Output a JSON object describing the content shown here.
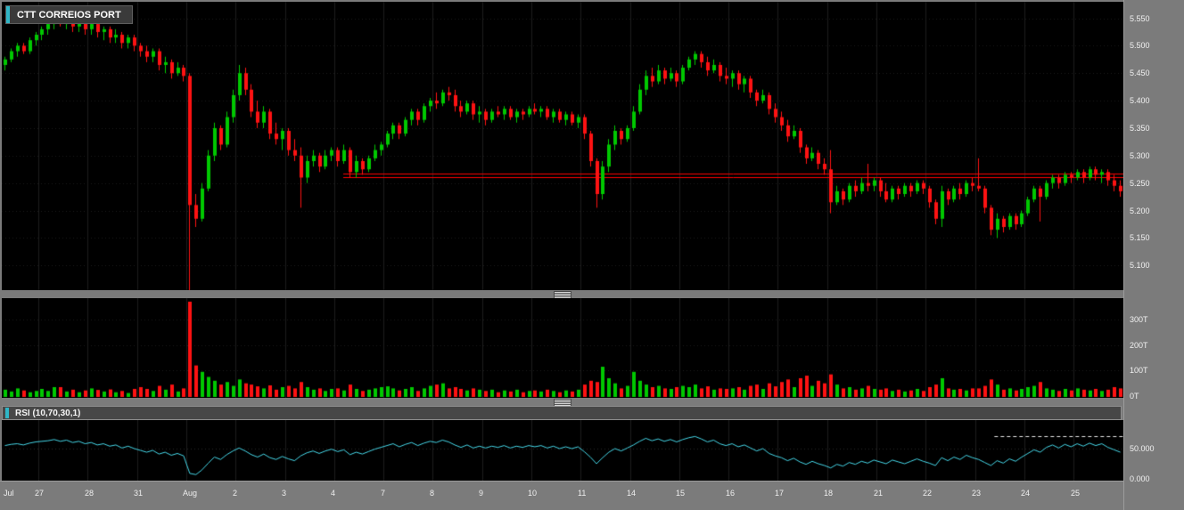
{
  "symbol_badge": {
    "label": "CTT CORREIOS PORT"
  },
  "rsi_header": {
    "label": "RSI (10,70,30,1)"
  },
  "colors": {
    "up": "#00c800",
    "down": "#ff1212",
    "rsi_line": "#45d7e8",
    "accent": "#2fb6c6",
    "price_line": "#ff0000",
    "grid": "#1d1d1d",
    "grid_dotted": "#1c1c1c",
    "frame": "#7b7b7b",
    "panel_bg": "#000000",
    "axis_text": "#f1f1f1",
    "rsi_dashed": "#e8e8e8"
  },
  "price_axis": {
    "labels": [
      "5.550",
      "5.500",
      "5.450",
      "5.400",
      "5.350",
      "5.300",
      "5.250",
      "5.200",
      "5.150",
      "5.100"
    ]
  },
  "volume_axis": {
    "labels": [
      "300T",
      "200T",
      "100T",
      "0T"
    ]
  },
  "rsi_axis": {
    "labels": [
      "50.000",
      "0.000"
    ]
  },
  "date_axis": {
    "labels": [
      "Jul",
      "27",
      "28",
      "31",
      "Aug",
      "2",
      "3",
      "4",
      "7",
      "8",
      "9",
      "10",
      "11",
      "14",
      "15",
      "16",
      "17",
      "18",
      "21",
      "22",
      "23",
      "24",
      "25"
    ]
  },
  "chart_data": {
    "type": "candlestick",
    "title": "CTT CORREIOS PORT",
    "panels": [
      "price",
      "volume",
      "rsi"
    ],
    "x_axis": {
      "labels": [
        "Jul",
        "27",
        "28",
        "31",
        "Aug",
        "2",
        "3",
        "4",
        "7",
        "8",
        "9",
        "10",
        "11",
        "14",
        "15",
        "16",
        "17",
        "18",
        "21",
        "22",
        "23",
        "24",
        "25"
      ],
      "first_day_candles": 6,
      "candles_per_day": 8
    },
    "price_panel": {
      "ylim": [
        5.055,
        5.58
      ],
      "ticks": [
        5.55,
        5.5,
        5.45,
        5.4,
        5.35,
        5.3,
        5.25,
        5.2,
        5.15,
        5.1
      ],
      "horizontal_lines": [
        5.268,
        5.26
      ],
      "horizontal_lines_start_index": 55
    },
    "volume_panel": {
      "unit": "T",
      "ticks": [
        300,
        200,
        100,
        0
      ],
      "ymax": 380
    },
    "rsi_panel": {
      "label": "RSI (10,70,30,1)",
      "params": [
        10,
        70,
        30,
        1
      ],
      "ticks": [
        50,
        0
      ],
      "overbought_dashed_level": 70,
      "dashed_from_frac": 0.885,
      "ylim": [
        0,
        100
      ]
    },
    "candles": [
      [
        5.465,
        5.48,
        5.455,
        5.475
      ],
      [
        5.475,
        5.495,
        5.47,
        5.49
      ],
      [
        5.49,
        5.505,
        5.48,
        5.5
      ],
      [
        5.5,
        5.505,
        5.485,
        5.49
      ],
      [
        5.49,
        5.515,
        5.485,
        5.51
      ],
      [
        5.51,
        5.525,
        5.5,
        5.52
      ],
      [
        5.52,
        5.535,
        5.51,
        5.53
      ],
      [
        5.53,
        5.545,
        5.52,
        5.54
      ],
      [
        5.54,
        5.555,
        5.53,
        5.55
      ],
      [
        5.55,
        5.555,
        5.535,
        5.54
      ],
      [
        5.54,
        5.555,
        5.53,
        5.55
      ],
      [
        5.55,
        5.555,
        5.525,
        5.535
      ],
      [
        5.535,
        5.55,
        5.525,
        5.545
      ],
      [
        5.545,
        5.55,
        5.52,
        5.53
      ],
      [
        5.53,
        5.545,
        5.52,
        5.54
      ],
      [
        5.54,
        5.545,
        5.515,
        5.525
      ],
      [
        5.525,
        5.535,
        5.51,
        5.53
      ],
      [
        5.53,
        5.535,
        5.505,
        5.515
      ],
      [
        5.515,
        5.53,
        5.505,
        5.52
      ],
      [
        5.52,
        5.525,
        5.495,
        5.505
      ],
      [
        5.505,
        5.52,
        5.495,
        5.515
      ],
      [
        5.515,
        5.52,
        5.49,
        5.5
      ],
      [
        5.5,
        5.505,
        5.48,
        5.49
      ],
      [
        5.49,
        5.5,
        5.47,
        5.48
      ],
      [
        5.48,
        5.495,
        5.47,
        5.49
      ],
      [
        5.49,
        5.495,
        5.455,
        5.465
      ],
      [
        5.465,
        5.48,
        5.45,
        5.47
      ],
      [
        5.47,
        5.475,
        5.44,
        5.45
      ],
      [
        5.45,
        5.47,
        5.445,
        5.46
      ],
      [
        5.46,
        5.465,
        5.435,
        5.445
      ],
      [
        5.445,
        5.45,
        5.05,
        5.21
      ],
      [
        5.21,
        5.23,
        5.17,
        5.185
      ],
      [
        5.185,
        5.25,
        5.18,
        5.24
      ],
      [
        5.24,
        5.31,
        5.235,
        5.3
      ],
      [
        5.3,
        5.36,
        5.29,
        5.35
      ],
      [
        5.35,
        5.355,
        5.31,
        5.32
      ],
      [
        5.32,
        5.38,
        5.315,
        5.37
      ],
      [
        5.37,
        5.42,
        5.36,
        5.41
      ],
      [
        5.41,
        5.465,
        5.4,
        5.45
      ],
      [
        5.45,
        5.46,
        5.41,
        5.42
      ],
      [
        5.42,
        5.43,
        5.37,
        5.38
      ],
      [
        5.38,
        5.4,
        5.35,
        5.36
      ],
      [
        5.36,
        5.39,
        5.35,
        5.38
      ],
      [
        5.38,
        5.385,
        5.33,
        5.34
      ],
      [
        5.34,
        5.36,
        5.32,
        5.33
      ],
      [
        5.33,
        5.35,
        5.31,
        5.345
      ],
      [
        5.345,
        5.35,
        5.3,
        5.31
      ],
      [
        5.31,
        5.33,
        5.29,
        5.3
      ],
      [
        5.3,
        5.315,
        5.205,
        5.26
      ],
      [
        5.26,
        5.3,
        5.25,
        5.29
      ],
      [
        5.29,
        5.31,
        5.28,
        5.3
      ],
      [
        5.3,
        5.305,
        5.27,
        5.28
      ],
      [
        5.28,
        5.31,
        5.275,
        5.3
      ],
      [
        5.3,
        5.315,
        5.29,
        5.31
      ],
      [
        5.31,
        5.315,
        5.28,
        5.29
      ],
      [
        5.29,
        5.32,
        5.285,
        5.31
      ],
      [
        5.31,
        5.315,
        5.26,
        5.27
      ],
      [
        5.27,
        5.3,
        5.26,
        5.29
      ],
      [
        5.29,
        5.295,
        5.265,
        5.275
      ],
      [
        5.275,
        5.3,
        5.27,
        5.295
      ],
      [
        5.295,
        5.32,
        5.29,
        5.31
      ],
      [
        5.31,
        5.325,
        5.3,
        5.32
      ],
      [
        5.32,
        5.345,
        5.315,
        5.34
      ],
      [
        5.34,
        5.36,
        5.33,
        5.355
      ],
      [
        5.355,
        5.36,
        5.33,
        5.34
      ],
      [
        5.34,
        5.37,
        5.335,
        5.365
      ],
      [
        5.365,
        5.385,
        5.355,
        5.38
      ],
      [
        5.38,
        5.385,
        5.355,
        5.365
      ],
      [
        5.365,
        5.395,
        5.36,
        5.39
      ],
      [
        5.39,
        5.405,
        5.38,
        5.4
      ],
      [
        5.4,
        5.415,
        5.385,
        5.395
      ],
      [
        5.395,
        5.42,
        5.39,
        5.415
      ],
      [
        5.415,
        5.425,
        5.4,
        5.41
      ],
      [
        5.41,
        5.42,
        5.38,
        5.39
      ],
      [
        5.39,
        5.4,
        5.37,
        5.38
      ],
      [
        5.38,
        5.4,
        5.375,
        5.395
      ],
      [
        5.395,
        5.4,
        5.365,
        5.375
      ],
      [
        5.375,
        5.39,
        5.36,
        5.38
      ],
      [
        5.38,
        5.385,
        5.355,
        5.365
      ],
      [
        5.365,
        5.385,
        5.36,
        5.38
      ],
      [
        5.38,
        5.39,
        5.37,
        5.375
      ],
      [
        5.375,
        5.39,
        5.365,
        5.385
      ],
      [
        5.385,
        5.39,
        5.365,
        5.37
      ],
      [
        5.37,
        5.385,
        5.36,
        5.38
      ],
      [
        5.38,
        5.385,
        5.365,
        5.375
      ],
      [
        5.375,
        5.39,
        5.37,
        5.385
      ],
      [
        5.385,
        5.395,
        5.375,
        5.38
      ],
      [
        5.38,
        5.39,
        5.37,
        5.385
      ],
      [
        5.385,
        5.39,
        5.365,
        5.37
      ],
      [
        5.37,
        5.385,
        5.36,
        5.38
      ],
      [
        5.38,
        5.385,
        5.36,
        5.365
      ],
      [
        5.365,
        5.38,
        5.355,
        5.375
      ],
      [
        5.375,
        5.38,
        5.355,
        5.36
      ],
      [
        5.36,
        5.375,
        5.35,
        5.37
      ],
      [
        5.37,
        5.375,
        5.33,
        5.34
      ],
      [
        5.34,
        5.345,
        5.28,
        5.29
      ],
      [
        5.29,
        5.295,
        5.205,
        5.23
      ],
      [
        5.23,
        5.29,
        5.22,
        5.28
      ],
      [
        5.28,
        5.33,
        5.27,
        5.32
      ],
      [
        5.32,
        5.355,
        5.31,
        5.345
      ],
      [
        5.345,
        5.35,
        5.32,
        5.33
      ],
      [
        5.33,
        5.355,
        5.325,
        5.35
      ],
      [
        5.35,
        5.39,
        5.345,
        5.38
      ],
      [
        5.38,
        5.43,
        5.375,
        5.42
      ],
      [
        5.42,
        5.455,
        5.41,
        5.445
      ],
      [
        5.445,
        5.46,
        5.425,
        5.435
      ],
      [
        5.435,
        5.465,
        5.43,
        5.455
      ],
      [
        5.455,
        5.46,
        5.43,
        5.44
      ],
      [
        5.44,
        5.46,
        5.435,
        5.45
      ],
      [
        5.45,
        5.455,
        5.425,
        5.435
      ],
      [
        5.435,
        5.465,
        5.43,
        5.46
      ],
      [
        5.46,
        5.48,
        5.455,
        5.475
      ],
      [
        5.475,
        5.49,
        5.465,
        5.485
      ],
      [
        5.485,
        5.49,
        5.46,
        5.47
      ],
      [
        5.47,
        5.48,
        5.445,
        5.455
      ],
      [
        5.455,
        5.475,
        5.45,
        5.465
      ],
      [
        5.465,
        5.47,
        5.435,
        5.445
      ],
      [
        5.445,
        5.46,
        5.43,
        5.44
      ],
      [
        5.44,
        5.455,
        5.425,
        5.45
      ],
      [
        5.45,
        5.455,
        5.42,
        5.43
      ],
      [
        5.43,
        5.445,
        5.415,
        5.44
      ],
      [
        5.44,
        5.445,
        5.405,
        5.415
      ],
      [
        5.415,
        5.42,
        5.39,
        5.4
      ],
      [
        5.4,
        5.42,
        5.395,
        5.41
      ],
      [
        5.41,
        5.415,
        5.375,
        5.385
      ],
      [
        5.385,
        5.395,
        5.36,
        5.37
      ],
      [
        5.37,
        5.38,
        5.345,
        5.355
      ],
      [
        5.355,
        5.365,
        5.325,
        5.335
      ],
      [
        5.335,
        5.355,
        5.33,
        5.345
      ],
      [
        5.345,
        5.35,
        5.305,
        5.315
      ],
      [
        5.315,
        5.32,
        5.285,
        5.295
      ],
      [
        5.295,
        5.315,
        5.29,
        5.305
      ],
      [
        5.305,
        5.31,
        5.275,
        5.285
      ],
      [
        5.285,
        5.295,
        5.265,
        5.275
      ],
      [
        5.275,
        5.31,
        5.195,
        5.215
      ],
      [
        5.215,
        5.245,
        5.21,
        5.235
      ],
      [
        5.235,
        5.24,
        5.21,
        5.22
      ],
      [
        5.22,
        5.25,
        5.215,
        5.245
      ],
      [
        5.245,
        5.255,
        5.225,
        5.235
      ],
      [
        5.235,
        5.26,
        5.23,
        5.25
      ],
      [
        5.25,
        5.285,
        5.235,
        5.245
      ],
      [
        5.245,
        5.26,
        5.235,
        5.255
      ],
      [
        5.255,
        5.26,
        5.225,
        5.235
      ],
      [
        5.235,
        5.25,
        5.215,
        5.22
      ],
      [
        5.22,
        5.245,
        5.215,
        5.24
      ],
      [
        5.24,
        5.245,
        5.22,
        5.23
      ],
      [
        5.23,
        5.25,
        5.225,
        5.245
      ],
      [
        5.245,
        5.25,
        5.225,
        5.235
      ],
      [
        5.235,
        5.255,
        5.23,
        5.25
      ],
      [
        5.25,
        5.255,
        5.23,
        5.24
      ],
      [
        5.24,
        5.245,
        5.205,
        5.215
      ],
      [
        5.215,
        5.22,
        5.175,
        5.185
      ],
      [
        5.185,
        5.245,
        5.17,
        5.235
      ],
      [
        5.235,
        5.24,
        5.21,
        5.22
      ],
      [
        5.22,
        5.245,
        5.215,
        5.24
      ],
      [
        5.24,
        5.25,
        5.22,
        5.23
      ],
      [
        5.23,
        5.255,
        5.225,
        5.25
      ],
      [
        5.25,
        5.26,
        5.235,
        5.245
      ],
      [
        5.245,
        5.295,
        5.235,
        5.24
      ],
      [
        5.24,
        5.245,
        5.195,
        5.205
      ],
      [
        5.205,
        5.21,
        5.155,
        5.165
      ],
      [
        5.165,
        5.195,
        5.15,
        5.185
      ],
      [
        5.185,
        5.19,
        5.16,
        5.17
      ],
      [
        5.17,
        5.195,
        5.165,
        5.19
      ],
      [
        5.19,
        5.195,
        5.165,
        5.175
      ],
      [
        5.175,
        5.2,
        5.17,
        5.195
      ],
      [
        5.195,
        5.225,
        5.19,
        5.22
      ],
      [
        5.22,
        5.245,
        5.215,
        5.24
      ],
      [
        5.24,
        5.245,
        5.18,
        5.225
      ],
      [
        5.225,
        5.255,
        5.22,
        5.25
      ],
      [
        5.25,
        5.265,
        5.24,
        5.26
      ],
      [
        5.26,
        5.265,
        5.24,
        5.25
      ],
      [
        5.25,
        5.27,
        5.245,
        5.265
      ],
      [
        5.265,
        5.27,
        5.25,
        5.26
      ],
      [
        5.26,
        5.275,
        5.255,
        5.27
      ],
      [
        5.27,
        5.275,
        5.25,
        5.26
      ],
      [
        5.26,
        5.28,
        5.255,
        5.275
      ],
      [
        5.275,
        5.28,
        5.255,
        5.265
      ],
      [
        5.265,
        5.275,
        5.25,
        5.27
      ],
      [
        5.27,
        5.275,
        5.245,
        5.255
      ],
      [
        5.255,
        5.265,
        5.235,
        5.245
      ],
      [
        5.245,
        5.255,
        5.225,
        5.235
      ]
    ],
    "volumes": [
      25,
      18,
      30,
      22,
      15,
      20,
      28,
      20,
      35,
      35,
      18,
      25,
      15,
      22,
      30,
      24,
      18,
      26,
      15,
      20,
      12,
      28,
      35,
      28,
      20,
      40,
      25,
      45,
      18,
      30,
      370,
      120,
      95,
      75,
      60,
      45,
      55,
      40,
      65,
      50,
      45,
      38,
      30,
      42,
      25,
      35,
      40,
      30,
      55,
      35,
      25,
      30,
      20,
      28,
      30,
      22,
      45,
      28,
      20,
      25,
      30,
      35,
      38,
      30,
      22,
      28,
      35,
      20,
      30,
      40,
      45,
      50,
      30,
      35,
      28,
      22,
      30,
      25,
      20,
      25,
      15,
      22,
      18,
      25,
      15,
      20,
      22,
      18,
      25,
      20,
      15,
      22,
      18,
      25,
      45,
      60,
      55,
      115,
      70,
      50,
      30,
      40,
      95,
      60,
      45,
      35,
      40,
      30,
      28,
      35,
      40,
      35,
      45,
      30,
      38,
      25,
      30,
      28,
      30,
      35,
      25,
      40,
      45,
      28,
      50,
      38,
      55,
      65,
      35,
      70,
      80,
      40,
      60,
      50,
      85,
      45,
      30,
      35,
      25,
      30,
      40,
      28,
      25,
      30,
      20,
      25,
      18,
      22,
      28,
      20,
      35,
      45,
      70,
      30,
      25,
      28,
      22,
      30,
      30,
      40,
      65,
      45,
      25,
      30,
      22,
      28,
      35,
      40,
      55,
      30,
      25,
      20,
      28,
      22,
      30,
      25,
      22,
      28,
      20,
      25,
      35,
      30
    ],
    "rsi": [
      55,
      57,
      58,
      56,
      59,
      61,
      62,
      63,
      65,
      62,
      64,
      60,
      62,
      58,
      60,
      56,
      58,
      54,
      56,
      51,
      54,
      50,
      47,
      44,
      47,
      41,
      44,
      39,
      42,
      38,
      9,
      7,
      15,
      26,
      36,
      32,
      40,
      46,
      51,
      46,
      40,
      36,
      41,
      35,
      32,
      37,
      33,
      30,
      38,
      43,
      46,
      42,
      46,
      49,
      45,
      48,
      40,
      44,
      41,
      45,
      49,
      52,
      55,
      58,
      53,
      57,
      60,
      55,
      59,
      62,
      60,
      64,
      61,
      56,
      52,
      56,
      51,
      54,
      51,
      54,
      52,
      55,
      51,
      54,
      52,
      55,
      53,
      55,
      51,
      54,
      50,
      53,
      50,
      53,
      45,
      36,
      25,
      35,
      44,
      50,
      46,
      51,
      56,
      62,
      67,
      63,
      66,
      62,
      65,
      61,
      65,
      68,
      70,
      66,
      61,
      64,
      58,
      55,
      58,
      53,
      56,
      51,
      46,
      50,
      42,
      38,
      35,
      30,
      34,
      28,
      24,
      29,
      25,
      22,
      18,
      24,
      21,
      27,
      24,
      29,
      26,
      31,
      28,
      25,
      31,
      28,
      25,
      29,
      33,
      29,
      26,
      22,
      35,
      30,
      36,
      32,
      39,
      35,
      32,
      27,
      22,
      30,
      26,
      33,
      29,
      36,
      42,
      48,
      44,
      52,
      56,
      51,
      57,
      53,
      58,
      54,
      59,
      55,
      58,
      52,
      48,
      44
    ]
  }
}
